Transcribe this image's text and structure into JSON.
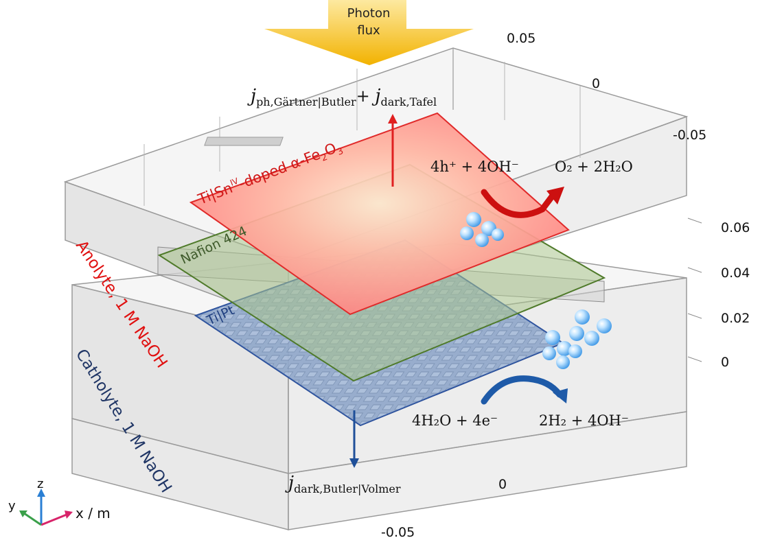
{
  "photon_label": {
    "line1": "Photon",
    "line2": "flux"
  },
  "equations": {
    "anode_current": {
      "j": "j",
      "sub1": "ph,Gärtner|Butler",
      "plus": "+ ",
      "j2": "j",
      "sub2": "dark,Tafel"
    },
    "cathode_current": {
      "j": "j",
      "sub": "dark,Butler|Volmer"
    },
    "oer_left": "4h⁺ + 4OH⁻",
    "oer_right": "O₂ + 2H₂O",
    "her_left": "4H₂O + 4e⁻",
    "her_right": "2H₂ + 4OH⁻"
  },
  "layers": {
    "anode": "Ti|Sn",
    "anode_sup": "IV",
    "anode_rest": "-doped α-Fe",
    "anode_sub1": "2",
    "anode_mid": "O",
    "anode_sub2": "3",
    "membrane": "Nafion 424",
    "cathode": "Ti|Pt",
    "anolyte": "Anolyte, 1 M NaOH",
    "catholyte": "Catholyte, 1 M NaOH"
  },
  "axis_ticks": {
    "y_axis": [
      "0.05",
      "0",
      "-0.05"
    ],
    "z_axis": [
      "0.06",
      "0.04",
      "0.02",
      "0"
    ],
    "x_axis": [
      "0",
      "-0.05"
    ]
  },
  "triad": {
    "z": "z",
    "y": "y",
    "x": "x / m"
  },
  "colors": {
    "anode": "#ff3b3b",
    "membrane": "#6b8e23",
    "cathode": "#2a4f9a",
    "arrow_red": "#d61e1e",
    "arrow_blue": "#1e5aa8",
    "photon": "#f5b800",
    "box": "#9a9a9a"
  }
}
